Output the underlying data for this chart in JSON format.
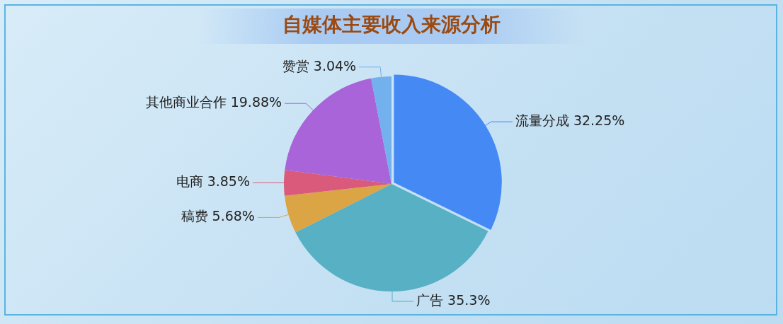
{
  "chart_data": {
    "type": "pie",
    "title": "自媒体主要收入来源分析",
    "categories": [
      "流量分成",
      "广告",
      "稿费",
      "电商",
      "其他商业合作",
      "赞赏"
    ],
    "values": [
      32.25,
      35.3,
      5.68,
      3.85,
      19.88,
      3.04
    ],
    "colors": [
      "#4589f5",
      "#57b0c3",
      "#dba545",
      "#d95a7a",
      "#a864d8",
      "#72b0ee"
    ],
    "value_labels": [
      "32.25%",
      "35.3%",
      "5.68%",
      "3.85%",
      "19.88%",
      "3.04%"
    ],
    "legend": false
  }
}
